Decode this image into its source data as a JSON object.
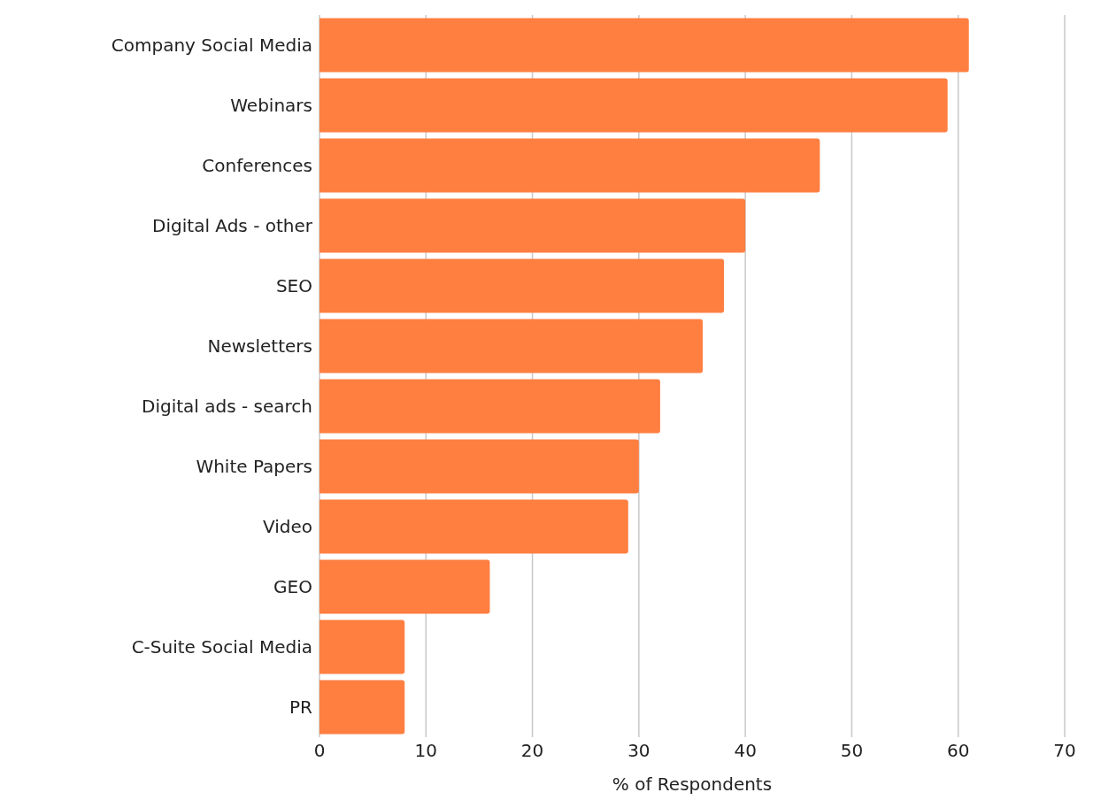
{
  "chart_data": {
    "type": "bar",
    "orientation": "horizontal",
    "xlabel": "% of Respondents",
    "categories": [
      "Company Social Media",
      "Webinars",
      "Conferences",
      "Digital Ads - other",
      "SEO",
      "Newsletters",
      "Digital ads - search",
      "White Papers",
      "Video",
      "GEO",
      "C-Suite Social Media",
      "PR"
    ],
    "values": [
      61,
      59,
      47,
      40,
      38,
      36,
      32,
      30,
      29,
      16,
      8,
      8
    ],
    "color": "#ff7f41",
    "xlim": [
      0,
      70
    ],
    "xticks": [
      0,
      10,
      20,
      30,
      40,
      50,
      60,
      70
    ],
    "grid": "x",
    "legend": false
  }
}
